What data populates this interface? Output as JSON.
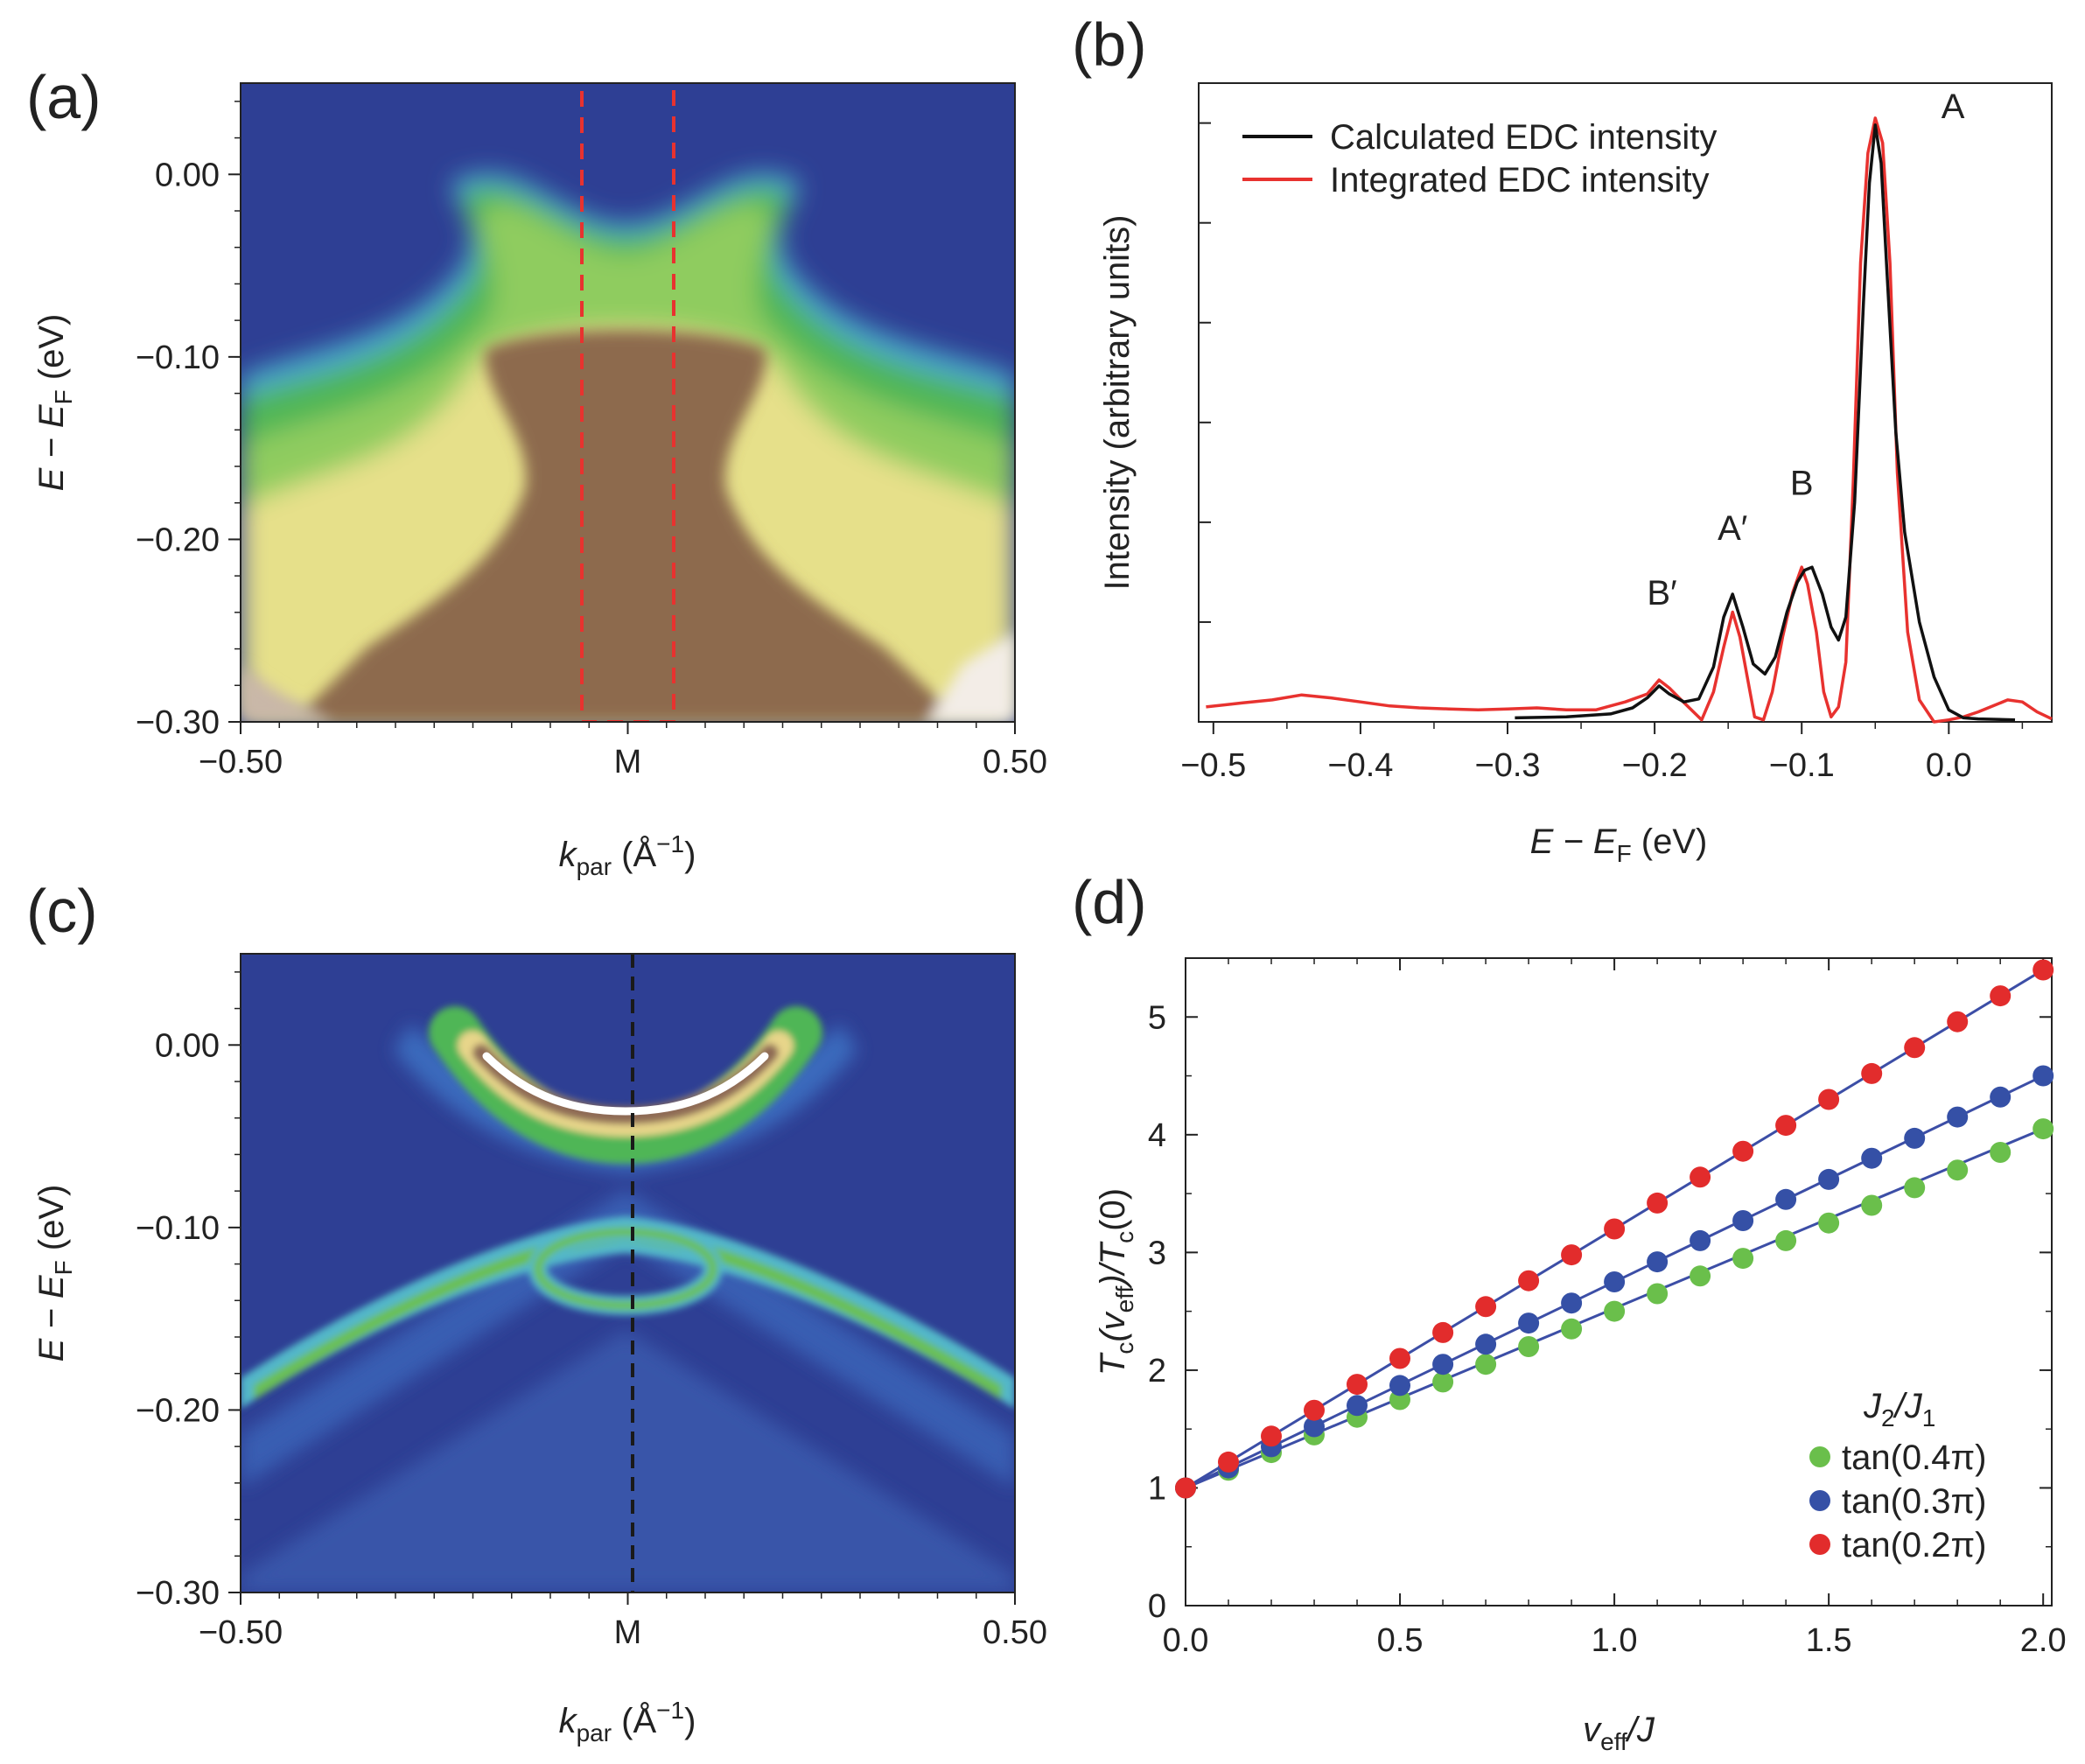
{
  "figure": {
    "panels": [
      {
        "letter": "(a)"
      },
      {
        "letter": "(b)"
      },
      {
        "letter": "(c)"
      },
      {
        "letter": "(d)"
      }
    ]
  },
  "colors": {
    "axis": "#222222",
    "map_background": "#2e3f94",
    "dashed_box": "#e8322f",
    "dashed_line": "#1a1a1a",
    "calc_line": "#111111",
    "integrated_line": "#e8322f",
    "fit_line": "#3c4ea6",
    "green": "#6abf4b",
    "blue": "#3550a6",
    "red": "#e22c2c"
  },
  "chart_data": [
    {
      "panel": "(a)",
      "type": "heatmap",
      "title": "",
      "xlabel_prefix": "k",
      "xlabel_sub": "par",
      "xlabel_suffix": " (Å",
      "xlabel_sup": "−1",
      "xlabel_close": ")",
      "ylabel_prefix": "E − E",
      "ylabel_sub": "F",
      "ylabel_suffix": " (eV)",
      "xlim": [
        -0.5,
        0.5
      ],
      "ylim": [
        -0.3,
        0.05
      ],
      "xticks": [
        {
          "value": -0.5,
          "label": "−0.50"
        },
        {
          "value": 0.0,
          "label": "M"
        },
        {
          "value": 0.5,
          "label": "0.50"
        }
      ],
      "yticks": [
        {
          "value": 0.0,
          "label": "0.00"
        },
        {
          "value": -0.1,
          "label": "−0.10"
        },
        {
          "value": -0.2,
          "label": "−0.20"
        },
        {
          "value": -0.3,
          "label": "−0.30"
        }
      ],
      "annotation": "dashed integration window around M",
      "box_k_range": [
        -0.06,
        0.06
      ]
    },
    {
      "panel": "(b)",
      "type": "line",
      "xlabel_prefix": "E − E",
      "xlabel_sub": "F",
      "xlabel_suffix": " (eV)",
      "ylabel": "Intensity (arbitrary units)",
      "xlim": [
        -0.51,
        0.07
      ],
      "ylim": [
        0,
        6.4
      ],
      "xticks": [
        {
          "value": -0.5,
          "label": "−0.5"
        },
        {
          "value": -0.4,
          "label": "−0.4"
        },
        {
          "value": -0.3,
          "label": "−0.3"
        },
        {
          "value": -0.2,
          "label": "−0.2"
        },
        {
          "value": -0.1,
          "label": "−0.1"
        },
        {
          "value": 0.0,
          "label": "0.0"
        }
      ],
      "yticks": [
        1,
        2,
        3,
        4,
        5,
        6
      ],
      "legend": [
        {
          "name": "Calculated EDC intensity",
          "color": "#111111"
        },
        {
          "name": "Integrated EDC intensity",
          "color": "#e8322f"
        }
      ],
      "peaks": [
        {
          "label": "B′",
          "x": -0.195,
          "y": 1.0
        },
        {
          "label": "A′",
          "x": -0.147,
          "y": 1.65
        },
        {
          "label": "B",
          "x": -0.1,
          "y": 2.1
        },
        {
          "label": "A",
          "x": -0.03,
          "y": 6.0
        }
      ],
      "series": [
        {
          "name": "Calculated EDC intensity",
          "x": [
            -0.295,
            -0.26,
            -0.23,
            -0.215,
            -0.205,
            -0.197,
            -0.19,
            -0.18,
            -0.17,
            -0.16,
            -0.153,
            -0.147,
            -0.14,
            -0.133,
            -0.125,
            -0.118,
            -0.11,
            -0.103,
            -0.098,
            -0.093,
            -0.086,
            -0.08,
            -0.075,
            -0.07,
            -0.064,
            -0.058,
            -0.054,
            -0.05,
            -0.046,
            -0.042,
            -0.036,
            -0.03,
            -0.02,
            -0.01,
            0.0,
            0.01,
            0.02,
            0.045
          ],
          "y": [
            0.04,
            0.05,
            0.08,
            0.14,
            0.24,
            0.36,
            0.28,
            0.2,
            0.23,
            0.55,
            1.05,
            1.28,
            0.95,
            0.58,
            0.48,
            0.65,
            1.1,
            1.4,
            1.52,
            1.55,
            1.28,
            0.95,
            0.82,
            1.05,
            2.2,
            4.2,
            5.4,
            5.98,
            5.6,
            4.5,
            2.9,
            1.9,
            1.0,
            0.45,
            0.12,
            0.04,
            0.03,
            0.02
          ]
        },
        {
          "name": "Integrated EDC intensity",
          "x": [
            -0.505,
            -0.48,
            -0.46,
            -0.44,
            -0.42,
            -0.4,
            -0.38,
            -0.36,
            -0.34,
            -0.32,
            -0.3,
            -0.28,
            -0.26,
            -0.24,
            -0.22,
            -0.205,
            -0.197,
            -0.19,
            -0.182,
            -0.175,
            -0.168,
            -0.16,
            -0.153,
            -0.147,
            -0.142,
            -0.137,
            -0.132,
            -0.126,
            -0.12,
            -0.113,
            -0.106,
            -0.1,
            -0.096,
            -0.09,
            -0.085,
            -0.08,
            -0.075,
            -0.07,
            -0.065,
            -0.06,
            -0.055,
            -0.05,
            -0.045,
            -0.04,
            -0.035,
            -0.028,
            -0.02,
            -0.01,
            0.0,
            0.01,
            0.02,
            0.03,
            0.04,
            0.05,
            0.06,
            0.07
          ],
          "y": [
            0.15,
            0.19,
            0.22,
            0.27,
            0.24,
            0.2,
            0.16,
            0.14,
            0.13,
            0.12,
            0.13,
            0.14,
            0.12,
            0.12,
            0.2,
            0.28,
            0.42,
            0.34,
            0.22,
            0.12,
            0.02,
            0.3,
            0.75,
            1.1,
            0.85,
            0.45,
            0.05,
            0.02,
            0.3,
            0.85,
            1.3,
            1.55,
            1.38,
            0.9,
            0.3,
            0.05,
            0.15,
            0.6,
            2.4,
            4.6,
            5.7,
            6.05,
            5.8,
            4.6,
            2.5,
            0.9,
            0.22,
            0.0,
            0.02,
            0.05,
            0.1,
            0.16,
            0.22,
            0.2,
            0.1,
            0.03
          ]
        }
      ]
    },
    {
      "panel": "(c)",
      "type": "heatmap",
      "xlabel_prefix": "k",
      "xlabel_sub": "par",
      "xlabel_suffix": " (Å",
      "xlabel_sup": "−1",
      "xlabel_close": ")",
      "ylabel_prefix": "E − E",
      "ylabel_sub": "F",
      "ylabel_suffix": " (eV)",
      "xlim": [
        -0.5,
        0.5
      ],
      "ylim": [
        -0.3,
        0.05
      ],
      "xticks": [
        {
          "value": -0.5,
          "label": "−0.50"
        },
        {
          "value": 0.0,
          "label": "M"
        },
        {
          "value": 0.5,
          "label": "0.50"
        }
      ],
      "yticks": [
        {
          "value": 0.0,
          "label": "0.00"
        },
        {
          "value": -0.1,
          "label": "−0.10"
        },
        {
          "value": -0.2,
          "label": "−0.20"
        },
        {
          "value": -0.3,
          "label": "−0.30"
        }
      ],
      "annotation": "dashed line at M"
    },
    {
      "panel": "(d)",
      "type": "scatter",
      "xlabel_prefix": "v",
      "xlabel_sub": "eff",
      "xlabel_suffix": "/J",
      "ylabel_parts": [
        "T",
        "c",
        "(v",
        "eff",
        ")/T",
        "c",
        "(0)"
      ],
      "xlim": [
        0,
        2.02
      ],
      "ylim": [
        0,
        5.5
      ],
      "xticks": [
        {
          "value": 0.0,
          "label": "0.0"
        },
        {
          "value": 0.5,
          "label": "0.5"
        },
        {
          "value": 1.0,
          "label": "1.0"
        },
        {
          "value": 1.5,
          "label": "1.5"
        },
        {
          "value": 2.0,
          "label": "2.0"
        }
      ],
      "yticks": [
        {
          "value": 0,
          "label": "0"
        },
        {
          "value": 1,
          "label": "1"
        },
        {
          "value": 2,
          "label": "2"
        },
        {
          "value": 3,
          "label": "3"
        },
        {
          "value": 4,
          "label": "4"
        },
        {
          "value": 5,
          "label": "5"
        }
      ],
      "legend_title_parts": [
        "J",
        "2",
        "/J",
        "1"
      ],
      "x": [
        0.0,
        0.1,
        0.2,
        0.3,
        0.4,
        0.5,
        0.6,
        0.7,
        0.8,
        0.9,
        1.0,
        1.1,
        1.2,
        1.3,
        1.4,
        1.5,
        1.6,
        1.7,
        1.8,
        1.9,
        2.0
      ],
      "series": [
        {
          "name": "tan(0.4π)",
          "color": "#6abf4b",
          "values": [
            1.0,
            1.15,
            1.3,
            1.45,
            1.6,
            1.75,
            1.9,
            2.05,
            2.2,
            2.35,
            2.5,
            2.65,
            2.8,
            2.95,
            3.1,
            3.25,
            3.4,
            3.55,
            3.7,
            3.85,
            4.05
          ]
        },
        {
          "name": "tan(0.3π)",
          "color": "#3550a6",
          "values": [
            1.0,
            1.17,
            1.35,
            1.52,
            1.7,
            1.87,
            2.05,
            2.22,
            2.4,
            2.57,
            2.75,
            2.92,
            3.1,
            3.27,
            3.45,
            3.62,
            3.8,
            3.97,
            4.15,
            4.32,
            4.5
          ]
        },
        {
          "name": "tan(0.2π)",
          "color": "#e22c2c",
          "values": [
            1.0,
            1.22,
            1.44,
            1.66,
            1.88,
            2.1,
            2.32,
            2.54,
            2.76,
            2.98,
            3.2,
            3.42,
            3.64,
            3.86,
            4.08,
            4.3,
            4.52,
            4.74,
            4.96,
            5.18,
            5.4
          ]
        }
      ]
    }
  ]
}
